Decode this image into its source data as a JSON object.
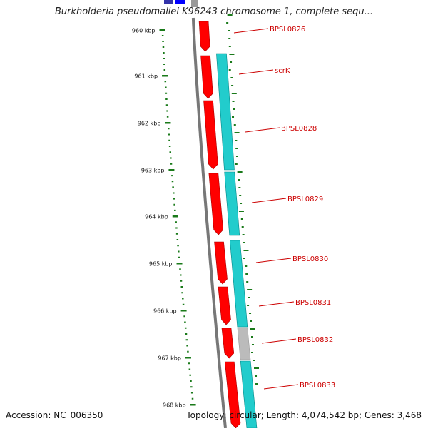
{
  "title": "Burkholderia pseudomallei K96243 chromosome 1, complete sequ...",
  "footer": {
    "accession": "Accession: NC_006350",
    "summary": "Topology: circular; Length: 4,074,542 bp; Genes: 3,468"
  },
  "ticks": [
    "960 kbp",
    "961 kbp",
    "962 kbp",
    "963 kbp",
    "964 kbp",
    "965 kbp",
    "966 kbp",
    "967 kbp",
    "968 kbp"
  ],
  "genes": [
    {
      "label": "BPSL0826"
    },
    {
      "label": "scrK"
    },
    {
      "label": "BPSL0828"
    },
    {
      "label": "BPSL0829"
    },
    {
      "label": "BPSL0830"
    },
    {
      "label": "BPSL0831"
    },
    {
      "label": "BPSL0832"
    },
    {
      "label": "BPSL0833"
    }
  ],
  "colors": {
    "backbone": "#777777",
    "forward_feature": "#ff0000",
    "forward_feature_edge": "#aa0000",
    "cds": "#22cccc",
    "cds_edge": "#008888",
    "pseudo": "#bbbbbb",
    "tick": "#1a7a1a",
    "label": "#cc0000",
    "top_feature_dark": "#3333aa",
    "top_feature_bright": "#0000ff"
  }
}
